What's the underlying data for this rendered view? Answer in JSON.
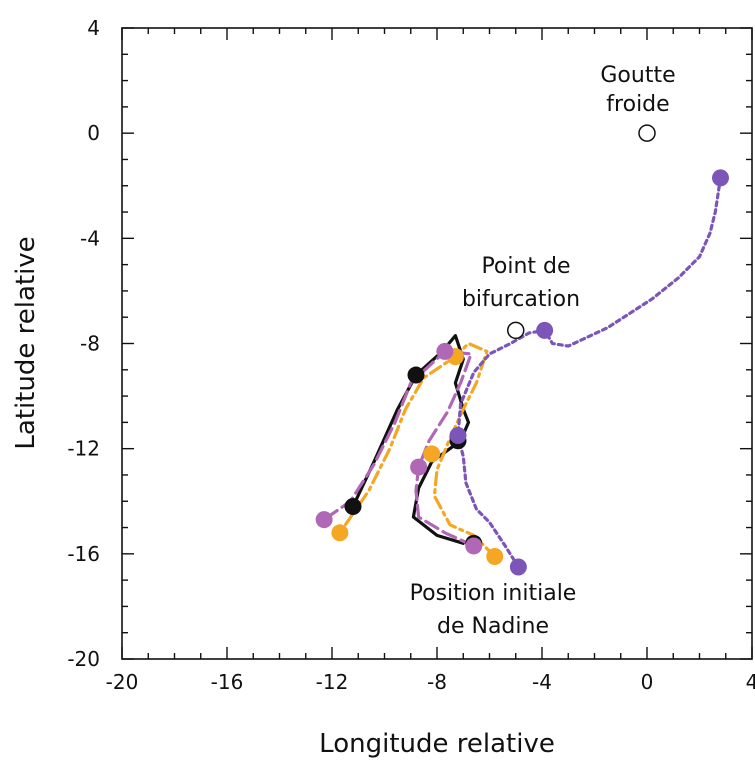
{
  "chart_data": {
    "type": "line",
    "title": "",
    "xlabel": "Longitude relative",
    "ylabel": "Latitude relative",
    "xlim": [
      -20,
      4
    ],
    "ylim": [
      -20,
      4
    ],
    "xticks": [
      "-20",
      "-16",
      "-12",
      "-8",
      "-4",
      "0",
      "4"
    ],
    "yticks": [
      "4",
      "0",
      "-4",
      "-8",
      "-12",
      "-16",
      "-20"
    ],
    "grid": false,
    "series": [
      {
        "color": "#111111",
        "style": "solid",
        "points": [
          [
            -7.0,
            -15.6
          ],
          [
            -8.0,
            -15.3
          ],
          [
            -8.9,
            -14.6
          ],
          [
            -8.7,
            -13.5
          ],
          [
            -8.2,
            -12.5
          ],
          [
            -7.1,
            -11.7
          ],
          [
            -6.8,
            -11.0
          ],
          [
            -7.0,
            -10.5
          ],
          [
            -7.3,
            -9.5
          ],
          [
            -7.0,
            -8.6
          ],
          [
            -7.3,
            -7.7
          ],
          [
            -7.8,
            -8.3
          ],
          [
            -8.8,
            -9.2
          ],
          [
            -9.5,
            -10.5
          ],
          [
            -10.4,
            -12.5
          ],
          [
            -11.2,
            -14.2
          ]
        ],
        "markers": [
          [
            -6.6,
            -15.6
          ],
          [
            -7.2,
            -11.7
          ],
          [
            -8.8,
            -9.2
          ],
          [
            -11.2,
            -14.2
          ]
        ]
      },
      {
        "color": "#f5a623",
        "style": "dashdot",
        "points": [
          [
            -5.8,
            -16.1
          ],
          [
            -6.6,
            -15.3
          ],
          [
            -7.5,
            -14.9
          ],
          [
            -8.1,
            -13.8
          ],
          [
            -8.0,
            -12.8
          ],
          [
            -7.5,
            -11.6
          ],
          [
            -7.0,
            -10.5
          ],
          [
            -6.5,
            -9.5
          ],
          [
            -6.1,
            -8.3
          ],
          [
            -6.8,
            -8.0
          ],
          [
            -7.3,
            -8.5
          ],
          [
            -8.5,
            -9.3
          ],
          [
            -9.2,
            -10.5
          ],
          [
            -9.8,
            -12.0
          ],
          [
            -10.6,
            -13.6
          ],
          [
            -11.7,
            -15.2
          ]
        ],
        "markers": [
          [
            -5.8,
            -16.1
          ],
          [
            -8.2,
            -12.2
          ],
          [
            -7.3,
            -8.5
          ],
          [
            -11.7,
            -15.2
          ]
        ]
      },
      {
        "color": "#b067b5",
        "style": "dashed",
        "points": [
          [
            -6.6,
            -15.7
          ],
          [
            -7.7,
            -15.2
          ],
          [
            -8.7,
            -14.6
          ],
          [
            -8.8,
            -13.6
          ],
          [
            -8.7,
            -12.7
          ],
          [
            -8.3,
            -11.7
          ],
          [
            -7.6,
            -10.6
          ],
          [
            -7.1,
            -9.5
          ],
          [
            -6.7,
            -8.4
          ],
          [
            -7.7,
            -8.3
          ],
          [
            -9.0,
            -9.5
          ],
          [
            -9.6,
            -11.0
          ],
          [
            -10.4,
            -12.6
          ],
          [
            -11.3,
            -14.0
          ],
          [
            -12.3,
            -14.7
          ]
        ],
        "markers": [
          [
            -6.6,
            -15.7
          ],
          [
            -8.7,
            -12.7
          ],
          [
            -7.7,
            -8.3
          ],
          [
            -12.3,
            -14.7
          ]
        ]
      },
      {
        "color": "#7b56b8",
        "style": "dotted",
        "points": [
          [
            -4.9,
            -16.5
          ],
          [
            -5.4,
            -15.7
          ],
          [
            -6.0,
            -14.8
          ],
          [
            -6.5,
            -14.3
          ],
          [
            -6.9,
            -13.3
          ],
          [
            -7.0,
            -12.3
          ],
          [
            -7.2,
            -11.5
          ],
          [
            -7.1,
            -10.3
          ],
          [
            -6.6,
            -9.1
          ],
          [
            -6.0,
            -8.4
          ],
          [
            -5.2,
            -8.0
          ],
          [
            -4.5,
            -7.6
          ],
          [
            -3.9,
            -7.5
          ],
          [
            -3.6,
            -8.0
          ],
          [
            -3.0,
            -8.1
          ],
          [
            -1.5,
            -7.4
          ],
          [
            0.2,
            -6.3
          ],
          [
            1.2,
            -5.5
          ],
          [
            2.0,
            -4.7
          ],
          [
            2.4,
            -3.8
          ],
          [
            2.6,
            -3.0
          ],
          [
            2.8,
            -1.7
          ]
        ],
        "markers": [
          [
            -4.9,
            -16.5
          ],
          [
            -7.2,
            -11.5
          ],
          [
            -3.9,
            -7.5
          ],
          [
            2.8,
            -1.7
          ]
        ]
      }
    ],
    "special_points": [
      {
        "name": "goutte-froide",
        "x": 0.0,
        "y": 0.0
      },
      {
        "name": "point-de-bifurcation",
        "x": -5.0,
        "y": -7.5
      }
    ],
    "annotations": {
      "goutte_line1": "Goutte",
      "goutte_line2": "froide",
      "bifurcation_line1": "Point de",
      "bifurcation_line2": "bifurcation",
      "initial_line1": "Position initiale",
      "initial_line2": "de Nadine"
    }
  }
}
